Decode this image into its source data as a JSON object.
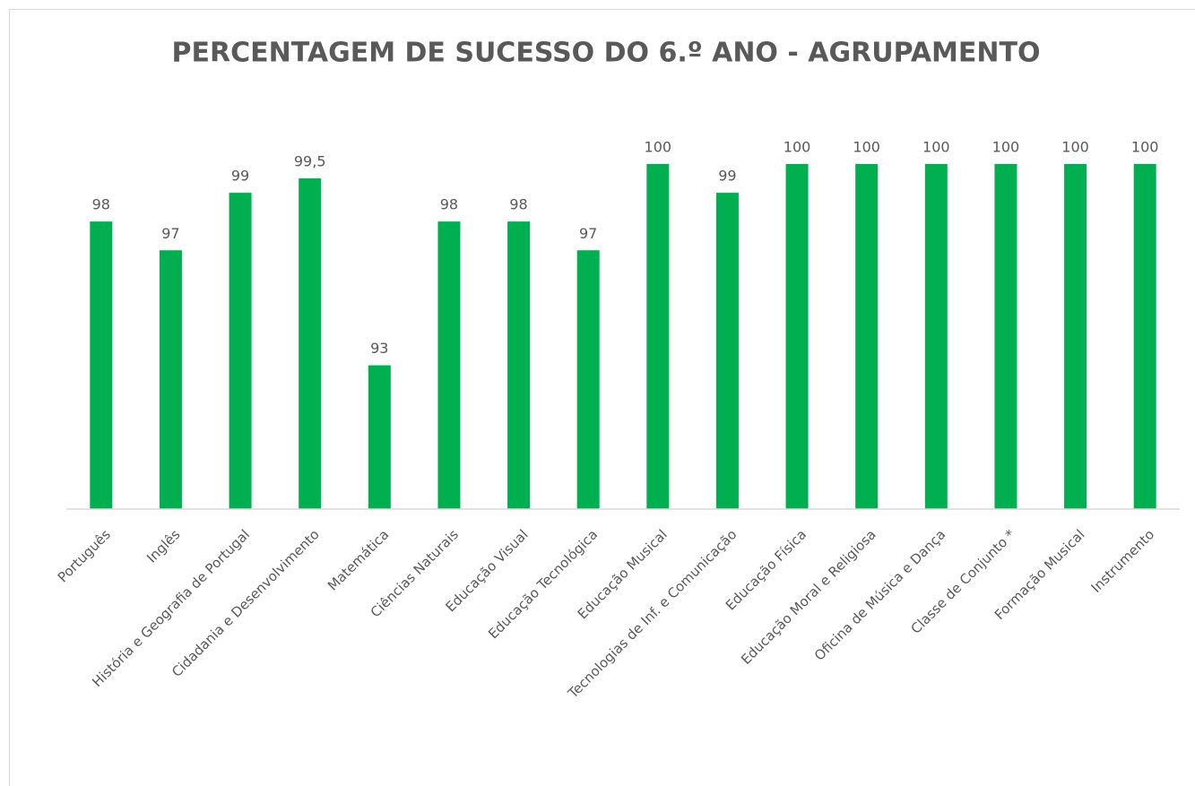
{
  "chart_data": {
    "type": "bar",
    "title": "PERCENTAGEM DE SUCESSO DO 6.º ANO -  AGRUPAMENTO",
    "categories": [
      "Português",
      "Inglês",
      "História e Geografia de Portugal",
      "Cidadania e Desenvolvimento",
      "Matemática",
      "Ciências Naturais",
      "Educação Visual",
      "Educação Tecnológica",
      "Educação Musical",
      "Tecnologias de Inf. e Comunicação",
      "Educação Física",
      "Educação Moral e Religiosa",
      "Oficina de Música e Dança",
      "Classe de Conjunto *",
      "Formação Musical",
      "Instrumento"
    ],
    "values": [
      98,
      97,
      99,
      99.5,
      93,
      98,
      98,
      97,
      100,
      99,
      100,
      100,
      100,
      100,
      100,
      100
    ],
    "value_labels": [
      "98",
      "97",
      "99",
      "99,5",
      "93",
      "98",
      "98",
      "97",
      "100",
      "99",
      "100",
      "100",
      "100",
      "100",
      "100",
      "100"
    ],
    "color": "#00b050",
    "ylim": [
      88,
      100
    ]
  }
}
